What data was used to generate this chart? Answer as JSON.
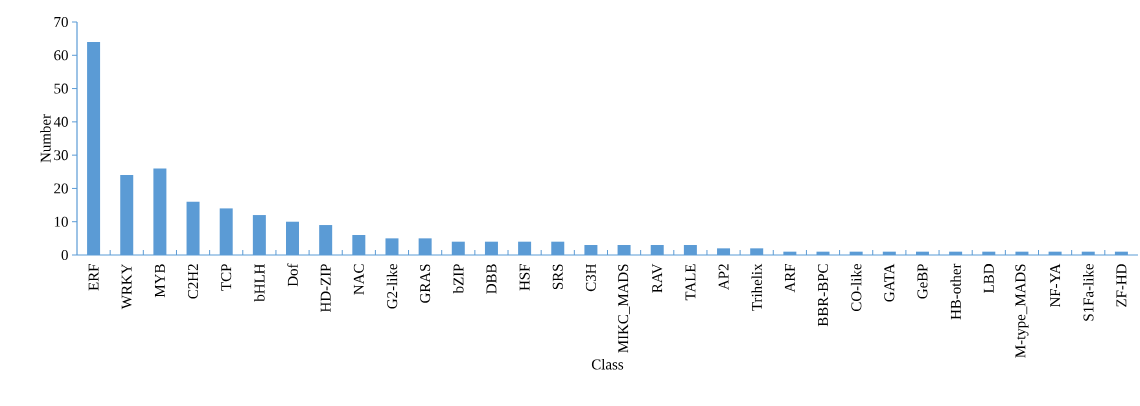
{
  "chart_data": {
    "type": "bar",
    "xlabel": "Class",
    "ylabel": "Number",
    "categories": [
      "ERF",
      "WRKY",
      "MYB",
      "C2H2",
      "TCP",
      "bHLH",
      "Dof",
      "HD-ZIP",
      "NAC",
      "G2-like",
      "GRAS",
      "bZIP",
      "DBB",
      "HSF",
      "SRS",
      "C3H",
      "MIKC_MADS",
      "RAV",
      "TALE",
      "AP2",
      "Trihelix",
      "ARF",
      "BBR-BPC",
      "CO-like",
      "GATA",
      "GeBP",
      "HB-other",
      "LBD",
      "M-type_MADS",
      "NF-YA",
      "S1Fa-like",
      "ZF-HD"
    ],
    "values": [
      64,
      24,
      26,
      16,
      14,
      12,
      10,
      9,
      6,
      5,
      5,
      4,
      4,
      4,
      4,
      3,
      3,
      3,
      3,
      2,
      2,
      1,
      1,
      1,
      1,
      1,
      1,
      1,
      1,
      1,
      1,
      1
    ],
    "color": "#5b9bd5",
    "ylim": [
      0,
      70
    ],
    "yticks": [
      0,
      10,
      20,
      30,
      40,
      50,
      60,
      70
    ],
    "grid": false
  }
}
